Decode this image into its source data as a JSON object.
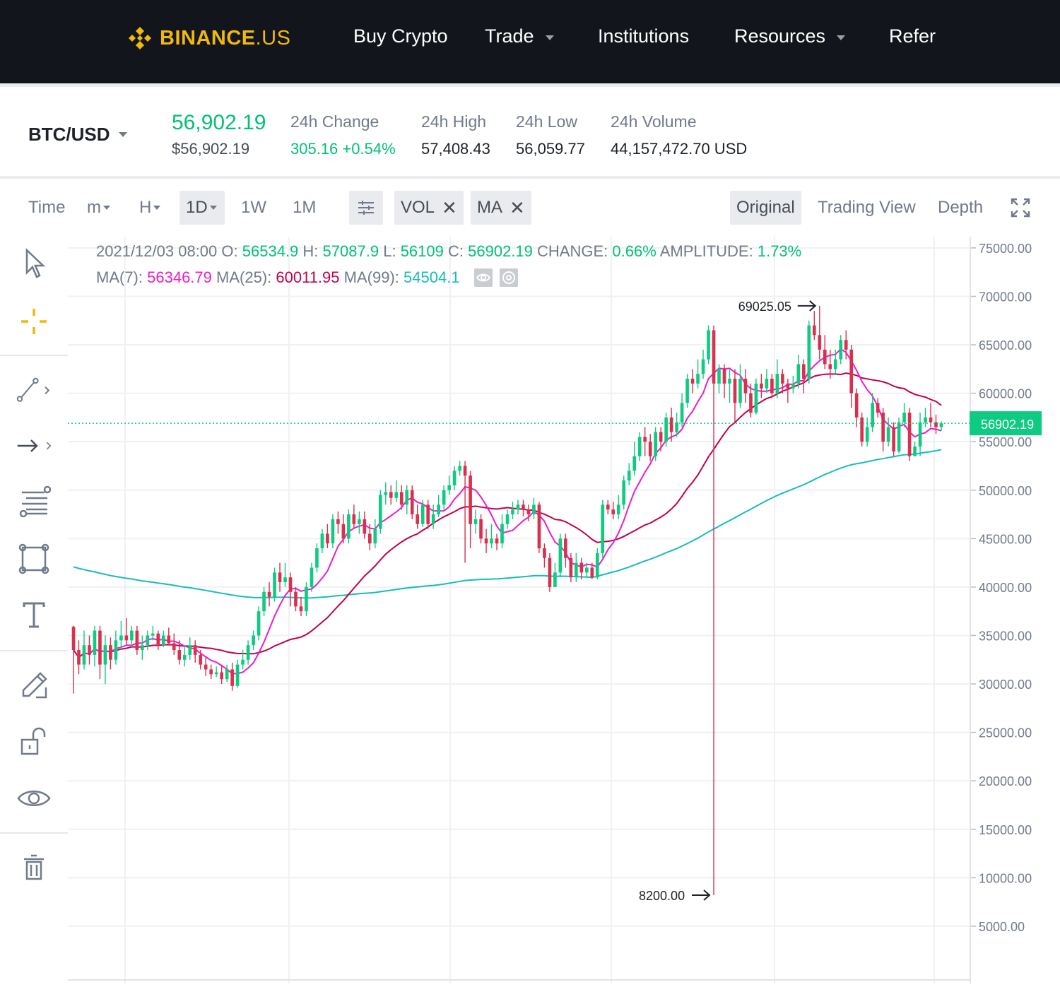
{
  "nav": {
    "logo_text": "BINANCE",
    "logo_suffix": ".US",
    "items": [
      {
        "label": "Buy Crypto",
        "dropdown": false
      },
      {
        "label": "Trade",
        "dropdown": true
      },
      {
        "label": "Institutions",
        "dropdown": false
      },
      {
        "label": "Resources",
        "dropdown": true
      },
      {
        "label": "Refer",
        "dropdown": false
      }
    ]
  },
  "ticker": {
    "pair": "BTC/USD",
    "last_price": "56,902.19",
    "last_price_usd": "$56,902.19",
    "change_label": "24h Change",
    "change_value": "305.16 +0.54%",
    "high_label": "24h High",
    "high_value": "57,408.43",
    "low_label": "24h Low",
    "low_value": "56,059.77",
    "volume_label": "24h Volume",
    "volume_value": "44,157,472.70 USD"
  },
  "toolbar": {
    "time_label": "Time",
    "intervals": [
      "m",
      "H",
      "1D",
      "1W",
      "1M"
    ],
    "active_interval": "1D",
    "indicators": [
      "VOL",
      "MA"
    ],
    "views": [
      "Original",
      "Trading View",
      "Depth"
    ],
    "active_view": "Original"
  },
  "ohlc": {
    "date": "2021/12/03 08:00",
    "o_label": "O:",
    "o": "56534.9",
    "h_label": "H:",
    "h": "57087.9",
    "l_label": "L:",
    "l": "56109",
    "c_label": "C:",
    "c": "56902.19",
    "change_label": "CHANGE:",
    "change": "0.66%",
    "amp_label": "AMPLITUDE:",
    "amp": "1.73%",
    "ma7_label": "MA(7):",
    "ma7": "56346.79",
    "ma25_label": "MA(25):",
    "ma25": "60011.95",
    "ma99_label": "MA(99):",
    "ma99": "54504.1"
  },
  "colors": {
    "up": "#0ecb81",
    "down": "#d9304e",
    "ma7": "#e91ec9",
    "ma25": "#c1004f",
    "ma99": "#18bcbc",
    "brand": "#f0b90b"
  },
  "chart_data": {
    "type": "candlestick",
    "y_ticks": [
      "75000.00",
      "70000.00",
      "65000.00",
      "60000.00",
      "55000.00",
      "50000.00",
      "45000.00",
      "40000.00",
      "35000.00",
      "30000.00",
      "25000.00",
      "20000.00",
      "15000.00",
      "10000.00",
      "5000.00"
    ],
    "ylim": [
      0,
      78000
    ],
    "current_price": 56902.19,
    "current_price_label": "56902.19",
    "max_annotation": {
      "label": "69025.05",
      "value": 69025.05
    },
    "min_annotation": {
      "label": "8200.00",
      "value": 8200
    },
    "candles": [
      [
        35900,
        33500,
        36000,
        29000
      ],
      [
        33500,
        32000,
        34500,
        31000
      ],
      [
        32000,
        34000,
        35500,
        31500
      ],
      [
        34000,
        33000,
        35000,
        32000
      ],
      [
        33000,
        35500,
        36000,
        31800
      ],
      [
        35500,
        32000,
        36000,
        30500
      ],
      [
        32000,
        34000,
        35000,
        30000
      ],
      [
        34000,
        32500,
        34800,
        31500
      ],
      [
        32500,
        34500,
        35500,
        32000
      ],
      [
        34500,
        35000,
        36500,
        33500
      ],
      [
        35000,
        34500,
        36800,
        34000
      ],
      [
        34500,
        35500,
        36000,
        33800
      ],
      [
        35500,
        33500,
        36000,
        33000
      ],
      [
        33500,
        34000,
        35000,
        32500
      ],
      [
        34000,
        35000,
        35500,
        33500
      ],
      [
        35000,
        35200,
        36000,
        34500
      ],
      [
        35200,
        34000,
        35500,
        33500
      ],
      [
        34000,
        35000,
        35500,
        33800
      ],
      [
        35000,
        34200,
        35800,
        34000
      ],
      [
        34200,
        33500,
        35200,
        33000
      ],
      [
        33500,
        32500,
        34500,
        32000
      ],
      [
        32500,
        33000,
        34000,
        31800
      ],
      [
        33000,
        34000,
        34800,
        32500
      ],
      [
        34000,
        33000,
        34500,
        32200
      ],
      [
        33000,
        32000,
        33500,
        31500
      ],
      [
        32000,
        31500,
        32800,
        30800
      ],
      [
        31500,
        31000,
        32000,
        30500
      ],
      [
        31000,
        31200,
        31800,
        30700
      ],
      [
        31200,
        30500,
        32000,
        30000
      ],
      [
        30500,
        31500,
        32000,
        30200
      ],
      [
        31500,
        29800,
        32200,
        29300
      ],
      [
        29800,
        32000,
        32500,
        29600
      ],
      [
        32000,
        32500,
        33500,
        31500
      ],
      [
        32500,
        34000,
        34500,
        32000
      ],
      [
        34000,
        35000,
        35500,
        33500
      ],
      [
        35000,
        37500,
        38000,
        34500
      ],
      [
        37500,
        39500,
        40000,
        37000
      ],
      [
        39500,
        39000,
        40500,
        38000
      ],
      [
        39000,
        41500,
        42000,
        38500
      ],
      [
        41500,
        40500,
        42500,
        39500
      ],
      [
        40500,
        41000,
        42500,
        40000
      ],
      [
        41000,
        39500,
        41500,
        38000
      ],
      [
        39500,
        38000,
        40000,
        37500
      ],
      [
        38000,
        37500,
        39000,
        37000
      ],
      [
        37500,
        40000,
        40500,
        37000
      ],
      [
        40000,
        42000,
        42500,
        39500
      ],
      [
        42000,
        44000,
        44500,
        41500
      ],
      [
        44000,
        45500,
        46000,
        43500
      ],
      [
        45500,
        44500,
        46500,
        44000
      ],
      [
        44500,
        47000,
        47500,
        44000
      ],
      [
        47000,
        46500,
        47800,
        45500
      ],
      [
        46500,
        45000,
        47500,
        44500
      ],
      [
        45000,
        47500,
        48000,
        44500
      ],
      [
        47500,
        46500,
        48500,
        46000
      ],
      [
        46500,
        47000,
        47800,
        45500
      ],
      [
        47000,
        45500,
        47800,
        45000
      ],
      [
        45500,
        44500,
        46500,
        43800
      ],
      [
        44500,
        46000,
        47000,
        44000
      ],
      [
        46000,
        49500,
        50000,
        45500
      ],
      [
        49500,
        49800,
        50800,
        48500
      ],
      [
        49800,
        49200,
        50500,
        48500
      ],
      [
        49200,
        49800,
        51000,
        48800
      ],
      [
        49800,
        48500,
        50500,
        48000
      ],
      [
        48500,
        50000,
        50500,
        47500
      ],
      [
        50000,
        47500,
        50500,
        47000
      ],
      [
        47500,
        46500,
        48500,
        46000
      ],
      [
        46500,
        48500,
        49000,
        46200
      ],
      [
        48500,
        46500,
        49000,
        46000
      ],
      [
        46500,
        47500,
        48500,
        46000
      ],
      [
        47500,
        48500,
        49500,
        47200
      ],
      [
        48500,
        50000,
        50500,
        48000
      ],
      [
        50000,
        50500,
        51500,
        49500
      ],
      [
        50500,
        52000,
        52500,
        50000
      ],
      [
        52000,
        52500,
        53000,
        51500
      ],
      [
        52500,
        51500,
        53000,
        42500
      ],
      [
        51500,
        46500,
        52000,
        44000
      ],
      [
        46500,
        47000,
        48000,
        45500
      ],
      [
        47000,
        45000,
        47500,
        44500
      ],
      [
        45000,
        44500,
        46000,
        43500
      ],
      [
        44500,
        45000,
        46500,
        44000
      ],
      [
        45000,
        44500,
        45500,
        43800
      ],
      [
        44500,
        46500,
        47500,
        44000
      ],
      [
        46500,
        47500,
        48000,
        46000
      ],
      [
        47500,
        48000,
        48800,
        47000
      ],
      [
        48000,
        48500,
        49000,
        47500
      ],
      [
        48500,
        48000,
        49000,
        47300
      ],
      [
        48000,
        47500,
        48500,
        46800
      ],
      [
        47500,
        48500,
        49200,
        47000
      ],
      [
        48500,
        44000,
        48800,
        43500
      ],
      [
        44000,
        43000,
        44500,
        42000
      ],
      [
        43000,
        40000,
        43500,
        39500
      ],
      [
        40000,
        41500,
        42500,
        40000
      ],
      [
        41500,
        45000,
        45500,
        41000
      ],
      [
        45000,
        43000,
        45500,
        42000
      ],
      [
        43000,
        41000,
        43500,
        40500
      ],
      [
        41000,
        42500,
        43500,
        40500
      ],
      [
        42500,
        41500,
        43000,
        40800
      ],
      [
        41500,
        42000,
        42500,
        41000
      ],
      [
        42000,
        41000,
        42500,
        40800
      ],
      [
        41000,
        43500,
        44000,
        40800
      ],
      [
        43500,
        48500,
        49000,
        43000
      ],
      [
        48500,
        48000,
        49000,
        47500
      ],
      [
        48000,
        47500,
        48800,
        47000
      ],
      [
        47500,
        48500,
        49500,
        47000
      ],
      [
        48500,
        51000,
        51500,
        48000
      ],
      [
        51000,
        52000,
        52800,
        50500
      ],
      [
        52000,
        53500,
        55000,
        51500
      ],
      [
        53500,
        55500,
        56000,
        53000
      ],
      [
        55500,
        55000,
        56500,
        53500
      ],
      [
        55000,
        53500,
        55800,
        53000
      ],
      [
        53500,
        56000,
        56500,
        53000
      ],
      [
        56000,
        55000,
        56500,
        54000
      ],
      [
        55000,
        57500,
        58000,
        54500
      ],
      [
        57500,
        56000,
        58500,
        55000
      ],
      [
        56000,
        57000,
        58000,
        55500
      ],
      [
        57000,
        59000,
        60000,
        56500
      ],
      [
        59000,
        61500,
        62000,
        58500
      ],
      [
        61500,
        61000,
        62500,
        60000
      ],
      [
        61000,
        62000,
        63500,
        60500
      ],
      [
        62000,
        63500,
        64500,
        61500
      ],
      [
        63500,
        66500,
        67000,
        63000
      ],
      [
        66500,
        61000,
        67000,
        8200
      ],
      [
        61000,
        62500,
        63000,
        60000
      ],
      [
        62500,
        61000,
        63000,
        59500
      ],
      [
        61000,
        61500,
        62500,
        59000
      ],
      [
        61500,
        59000,
        62500,
        57000
      ],
      [
        59000,
        61500,
        63000,
        58500
      ],
      [
        61500,
        60000,
        62500,
        59000
      ],
      [
        60000,
        58000,
        61000,
        57500
      ],
      [
        58000,
        61000,
        61500,
        57800
      ],
      [
        61000,
        60500,
        62000,
        59500
      ],
      [
        60500,
        61500,
        62500,
        60000
      ],
      [
        61500,
        60000,
        62000,
        59500
      ],
      [
        60000,
        62000,
        63500,
        59500
      ],
      [
        62000,
        61000,
        62500,
        60000
      ],
      [
        61000,
        60500,
        61500,
        59000
      ],
      [
        60500,
        61000,
        61800,
        60000
      ],
      [
        61000,
        63000,
        64000,
        60500
      ],
      [
        63000,
        61500,
        63500,
        60000
      ],
      [
        61500,
        67000,
        67500,
        61000
      ],
      [
        67000,
        66000,
        68500,
        65500
      ],
      [
        66000,
        64500,
        69025,
        63500
      ],
      [
        64500,
        63000,
        66000,
        62500
      ],
      [
        63000,
        62500,
        64500,
        61500
      ],
      [
        62500,
        63500,
        64500,
        62000
      ],
      [
        63500,
        65500,
        66000,
        63000
      ],
      [
        65500,
        64500,
        66500,
        63500
      ],
      [
        64500,
        60000,
        65000,
        58500
      ],
      [
        60000,
        57500,
        60500,
        56500
      ],
      [
        57500,
        55000,
        58000,
        54500
      ],
      [
        55000,
        56500,
        57500,
        54500
      ],
      [
        56500,
        59000,
        60000,
        56000
      ],
      [
        59000,
        58000,
        59500,
        57500
      ],
      [
        58000,
        55000,
        58500,
        54000
      ],
      [
        55000,
        56500,
        57500,
        54500
      ],
      [
        56500,
        54000,
        57000,
        53500
      ],
      [
        54000,
        57000,
        57500,
        53800
      ],
      [
        57000,
        58000,
        59000,
        56500
      ],
      [
        58000,
        53500,
        58500,
        53000
      ],
      [
        53500,
        54500,
        55000,
        53500
      ],
      [
        54500,
        57000,
        58000,
        53500
      ],
      [
        57000,
        57500,
        58500,
        56500
      ],
      [
        57500,
        57000,
        59000,
        56500
      ],
      [
        57000,
        56500,
        57800,
        55800
      ],
      [
        56500,
        56900,
        57100,
        56100
      ]
    ]
  }
}
